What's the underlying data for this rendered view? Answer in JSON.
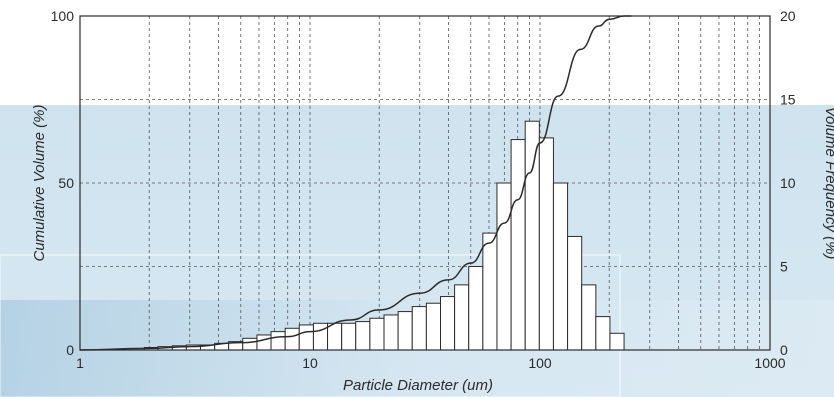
{
  "chart_data": {
    "type": "bar",
    "title": "",
    "xlabel": "Particle Diameter (um)",
    "ylabel_left": "Cumulative Volume (%)",
    "ylabel_right": "Volume Frequency (%)",
    "x_scale": "log",
    "xlim": [
      1,
      1000
    ],
    "ylim_left": [
      0,
      100
    ],
    "ylim_right": [
      0,
      20
    ],
    "grid": true,
    "x_ticks": [
      "1",
      "10",
      "100",
      "1000"
    ],
    "y_left_ticks": [
      "0",
      "50",
      "100"
    ],
    "y_right_ticks": [
      "0",
      "5",
      "10",
      "15",
      "20"
    ],
    "histogram": {
      "name": "",
      "axis": "right",
      "bin_edges": [
        1.905,
        2.18,
        2.52,
        2.9,
        3.34,
        3.85,
        4.43,
        5.1,
        5.88,
        6.77,
        7.8,
        8.98,
        10.35,
        11.92,
        13.73,
        15.81,
        18.21,
        20.98,
        24.16,
        27.83,
        32.06,
        36.93,
        42.53,
        48.99,
        56.43,
        65.0,
        74.87,
        86.24,
        99.34,
        114.4,
        131.8,
        151.8,
        174.9,
        201.4,
        232.0
      ],
      "values": [
        0.15,
        0.2,
        0.25,
        0.3,
        0.3,
        0.4,
        0.5,
        0.7,
        0.9,
        1.1,
        1.3,
        1.5,
        1.6,
        1.6,
        1.6,
        1.7,
        1.9,
        2.1,
        2.3,
        2.6,
        2.8,
        3.2,
        3.9,
        5.0,
        7.0,
        10.0,
        12.6,
        13.7,
        12.7,
        10.0,
        6.8,
        3.9,
        2.0,
        1.0
      ]
    },
    "cumulative": {
      "name": "",
      "axis": "left",
      "x": [
        1,
        2,
        3,
        5,
        8,
        10,
        15,
        20,
        30,
        40,
        50,
        60,
        70,
        80,
        90,
        100,
        120,
        150,
        180,
        200,
        232,
        250
      ],
      "y": [
        0,
        0.5,
        1,
        2.2,
        4,
        5.5,
        9,
        12,
        17,
        21,
        26,
        32,
        38,
        45,
        53,
        62,
        76,
        90,
        97,
        99,
        100,
        100
      ]
    },
    "colors": {
      "bar_fill": "#ffffff",
      "bar_stroke": "#2b2b2b",
      "line": "#2b2b2b",
      "grid": "#555555",
      "background_top": "#ffffff",
      "background_band": "#cfe3ef"
    }
  }
}
